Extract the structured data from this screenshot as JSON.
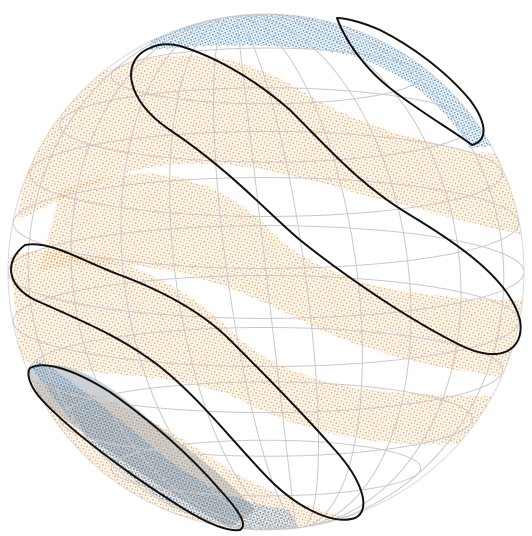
{
  "figure": {
    "kind": "sphere-projection",
    "colors": {
      "background": "#ffffff",
      "orange_points": "#f28e2b",
      "blue_points": "#2f7bbf",
      "gridlines": "#c9c9c9",
      "outline_curves": "#111111",
      "overlap_shade": "#6e7f8d"
    },
    "legend": [],
    "labels": []
  }
}
